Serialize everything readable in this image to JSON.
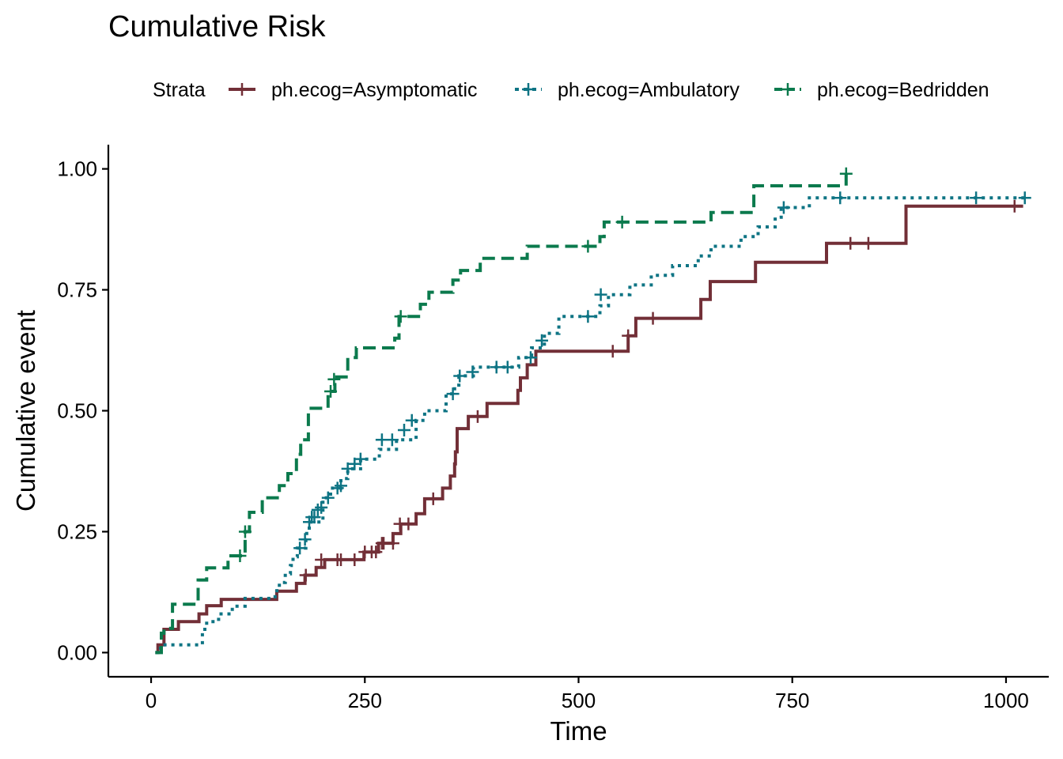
{
  "chart_data": {
    "type": "line",
    "step": true,
    "title": "Cumulative Risk",
    "xlabel": "Time",
    "ylabel": "Cumulative event",
    "xlim": [
      -50,
      1050
    ],
    "ylim": [
      -0.05,
      1.05
    ],
    "xticks": [
      0,
      250,
      500,
      750,
      1000
    ],
    "xtick_labels": [
      "0",
      "250",
      "500",
      "750",
      "1000"
    ],
    "yticks": [
      0,
      0.25,
      0.5,
      0.75,
      1.0
    ],
    "ytick_labels": [
      "0.00",
      "0.25",
      "0.50",
      "0.75",
      "1.00"
    ],
    "grid": false,
    "legend": {
      "title": "Strata",
      "position": "top"
    },
    "series": [
      {
        "name": "ph.ecog=Asymptomatic",
        "color": "#722F37",
        "dash": "solid",
        "steps": [
          [
            5,
            0
          ],
          [
            8,
            0.016
          ],
          [
            15,
            0.048
          ],
          [
            32,
            0.064
          ],
          [
            56,
            0.08
          ],
          [
            65,
            0.097
          ],
          [
            82,
            0.11
          ],
          [
            147,
            0.127
          ],
          [
            170,
            0.143
          ],
          [
            180,
            0.16
          ],
          [
            193,
            0.176
          ],
          [
            203,
            0.192
          ],
          [
            249,
            0.208
          ],
          [
            266,
            0.226
          ],
          [
            283,
            0.246
          ],
          [
            292,
            0.266
          ],
          [
            310,
            0.287
          ],
          [
            320,
            0.318
          ],
          [
            341,
            0.34
          ],
          [
            350,
            0.365
          ],
          [
            355,
            0.39
          ],
          [
            356,
            0.415
          ],
          [
            358,
            0.463
          ],
          [
            371,
            0.488
          ],
          [
            393,
            0.515
          ],
          [
            429,
            0.542
          ],
          [
            432,
            0.568
          ],
          [
            440,
            0.595
          ],
          [
            450,
            0.623
          ],
          [
            558,
            0.655
          ],
          [
            567,
            0.691
          ],
          [
            643,
            0.73
          ],
          [
            654,
            0.767
          ],
          [
            707,
            0.807
          ],
          [
            790,
            0.846
          ],
          [
            883,
            0.923
          ],
          [
            1020,
            0.923
          ]
        ],
        "censor": [
          [
            181,
            0.16
          ],
          [
            199,
            0.192
          ],
          [
            218,
            0.192
          ],
          [
            222,
            0.192
          ],
          [
            238,
            0.192
          ],
          [
            250,
            0.208
          ],
          [
            258,
            0.208
          ],
          [
            263,
            0.208
          ],
          [
            270,
            0.226
          ],
          [
            272,
            0.226
          ],
          [
            283,
            0.226
          ],
          [
            291,
            0.266
          ],
          [
            301,
            0.266
          ],
          [
            330,
            0.318
          ],
          [
            382,
            0.488
          ],
          [
            540,
            0.623
          ],
          [
            558,
            0.655
          ],
          [
            587,
            0.691
          ],
          [
            818,
            0.846
          ],
          [
            839,
            0.846
          ],
          [
            1010,
            0.923
          ]
        ]
      },
      {
        "name": "ph.ecog=Ambulatory",
        "color": "#0E7484",
        "dash": "dotted",
        "steps": [
          [
            5,
            0
          ],
          [
            11,
            0.016
          ],
          [
            60,
            0.048
          ],
          [
            65,
            0.064
          ],
          [
            79,
            0.08
          ],
          [
            95,
            0.096
          ],
          [
            110,
            0.112
          ],
          [
            145,
            0.128
          ],
          [
            150,
            0.145
          ],
          [
            157,
            0.163
          ],
          [
            163,
            0.18
          ],
          [
            166,
            0.198
          ],
          [
            171,
            0.216
          ],
          [
            181,
            0.234
          ],
          [
            182,
            0.252
          ],
          [
            185,
            0.27
          ],
          [
            201,
            0.32
          ],
          [
            210,
            0.34
          ],
          [
            222,
            0.36
          ],
          [
            230,
            0.38
          ],
          [
            245,
            0.4
          ],
          [
            267,
            0.42
          ],
          [
            287,
            0.44
          ],
          [
            310,
            0.48
          ],
          [
            320,
            0.5
          ],
          [
            345,
            0.535
          ],
          [
            355,
            0.553
          ],
          [
            360,
            0.572
          ],
          [
            377,
            0.59
          ],
          [
            430,
            0.61
          ],
          [
            445,
            0.63
          ],
          [
            460,
            0.66
          ],
          [
            477,
            0.695
          ],
          [
            525,
            0.717
          ],
          [
            535,
            0.74
          ],
          [
            560,
            0.76
          ],
          [
            585,
            0.78
          ],
          [
            610,
            0.8
          ],
          [
            640,
            0.82
          ],
          [
            655,
            0.84
          ],
          [
            690,
            0.86
          ],
          [
            710,
            0.88
          ],
          [
            730,
            0.9
          ],
          [
            737,
            0.92
          ],
          [
            770,
            0.94
          ],
          [
            1025,
            0.94
          ]
        ],
        "censor": [
          [
            174,
            0.216
          ],
          [
            180,
            0.234
          ],
          [
            185,
            0.27
          ],
          [
            188,
            0.28
          ],
          [
            191,
            0.28
          ],
          [
            195,
            0.295
          ],
          [
            199,
            0.3
          ],
          [
            207,
            0.32
          ],
          [
            218,
            0.34
          ],
          [
            222,
            0.345
          ],
          [
            230,
            0.38
          ],
          [
            238,
            0.39
          ],
          [
            245,
            0.4
          ],
          [
            270,
            0.44
          ],
          [
            282,
            0.44
          ],
          [
            296,
            0.46
          ],
          [
            305,
            0.48
          ],
          [
            353,
            0.535
          ],
          [
            361,
            0.572
          ],
          [
            376,
            0.58
          ],
          [
            404,
            0.59
          ],
          [
            417,
            0.59
          ],
          [
            444,
            0.61
          ],
          [
            457,
            0.645
          ],
          [
            511,
            0.695
          ],
          [
            526,
            0.74
          ],
          [
            740,
            0.92
          ],
          [
            806,
            0.94
          ],
          [
            965,
            0.94
          ],
          [
            1022,
            0.94
          ]
        ]
      },
      {
        "name": "ph.ecog=Bedridden",
        "color": "#0B7A4D",
        "dash": "dashed",
        "steps": [
          [
            5,
            0
          ],
          [
            12,
            0.04
          ],
          [
            15,
            0.05
          ],
          [
            25,
            0.1
          ],
          [
            55,
            0.15
          ],
          [
            65,
            0.175
          ],
          [
            90,
            0.2
          ],
          [
            110,
            0.25
          ],
          [
            115,
            0.29
          ],
          [
            130,
            0.32
          ],
          [
            150,
            0.345
          ],
          [
            160,
            0.37
          ],
          [
            170,
            0.41
          ],
          [
            175,
            0.44
          ],
          [
            184,
            0.505
          ],
          [
            207,
            0.54
          ],
          [
            215,
            0.57
          ],
          [
            230,
            0.61
          ],
          [
            240,
            0.63
          ],
          [
            285,
            0.65
          ],
          [
            290,
            0.695
          ],
          [
            315,
            0.72
          ],
          [
            325,
            0.745
          ],
          [
            353,
            0.77
          ],
          [
            362,
            0.79
          ],
          [
            385,
            0.815
          ],
          [
            440,
            0.84
          ],
          [
            525,
            0.86
          ],
          [
            530,
            0.89
          ],
          [
            655,
            0.91
          ],
          [
            705,
            0.965
          ],
          [
            813,
            0.99
          ]
        ],
        "censor": [
          [
            104,
            0.2
          ],
          [
            110,
            0.25
          ],
          [
            210,
            0.54
          ],
          [
            214,
            0.565
          ],
          [
            292,
            0.695
          ],
          [
            511,
            0.84
          ],
          [
            551,
            0.89
          ],
          [
            813,
            0.99
          ]
        ]
      }
    ]
  }
}
